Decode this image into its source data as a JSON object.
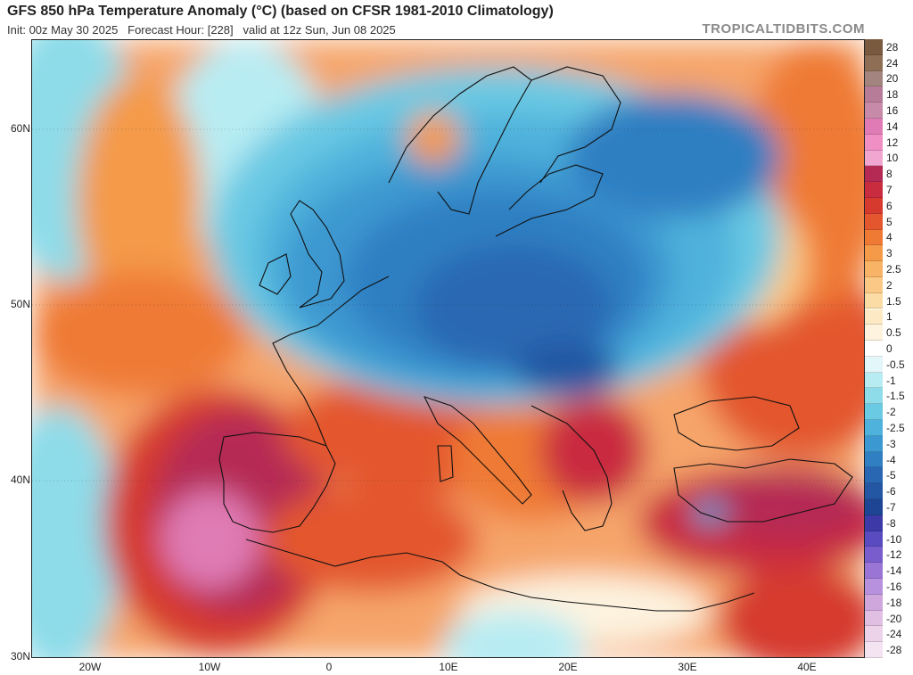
{
  "header": {
    "title": "GFS 850 hPa Temperature Anomaly (°C) (based on CFSR 1981-2010 Climatology)",
    "subtitle": "Init: 00z May 30 2025   Forecast Hour: [228]   valid at 12z Sun, Jun 08 2025",
    "brand": "TROPICALTIDBITS.COM"
  },
  "map": {
    "region": "Europe",
    "lat_labels": [
      "60N",
      "50N",
      "40N",
      "30N"
    ],
    "lon_labels": [
      "20W",
      "10W",
      "0",
      "10E",
      "20E",
      "30E",
      "40E"
    ]
  },
  "colorbar": {
    "labels": [
      "28",
      "24",
      "20",
      "18",
      "16",
      "14",
      "12",
      "10",
      "8",
      "7",
      "6",
      "5",
      "4",
      "3",
      "2.5",
      "2",
      "1.5",
      "1",
      "0.5",
      "0",
      "-0.5",
      "-1",
      "-1.5",
      "-2",
      "-2.5",
      "-3",
      "-4",
      "-5",
      "-6",
      "-7",
      "-8",
      "-10",
      "-12",
      "-14",
      "-16",
      "-18",
      "-20",
      "-24",
      "-28"
    ],
    "colors": [
      "#7a5a3e",
      "#8e6f56",
      "#a4847e",
      "#b77c98",
      "#c78aa8",
      "#e07bb5",
      "#f08fc4",
      "#f0a6d1",
      "#b52a55",
      "#c92b3f",
      "#d63a2f",
      "#e3562e",
      "#ef7a34",
      "#f49a48",
      "#f8b366",
      "#fbc985",
      "#fcdca5",
      "#fde9c3",
      "#fdf3df",
      "#ffffff",
      "#e3f6fa",
      "#b7ecf3",
      "#8edce9",
      "#6ac9e3",
      "#4fb2dc",
      "#3c98d0",
      "#2f7fc2",
      "#2a67b3",
      "#2457a3",
      "#1e4593",
      "#3d3aa8",
      "#5a4bc0",
      "#7a5dcc",
      "#9a75d6",
      "#b791dd",
      "#cfa7dc",
      "#e1bfe3",
      "#ecd3ea",
      "#f4e4f1"
    ]
  }
}
